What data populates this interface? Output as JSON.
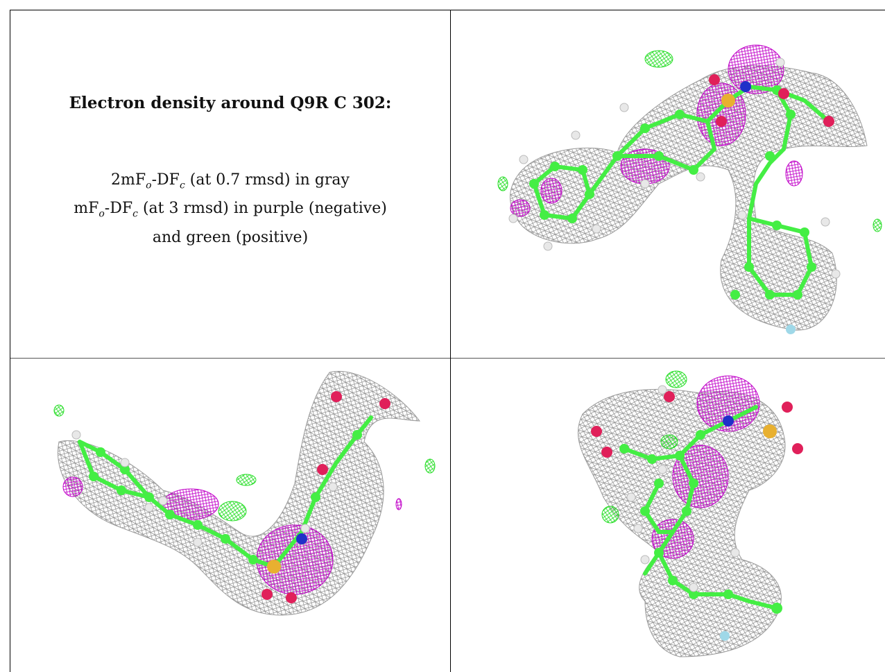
{
  "caption": {
    "title": "Electron density around Q9R C 302:",
    "line1": {
      "prefix": "2mF",
      "sub_o": "o",
      "mid": "-DF",
      "sub_c": "c",
      "suffix": " (at 0.7 rmsd) in gray"
    },
    "line2": {
      "prefix": "mF",
      "sub_o": "o",
      "mid": "-DF",
      "sub_c": "c",
      "suffix": " (at 3 rmsd) in purple (negative)"
    },
    "line3": "and green (positive)"
  },
  "legend_colors": {
    "map_2fofc": "#9a9a9a",
    "map_negative": "#c000c8",
    "map_positive": "#22dd22",
    "carbon": "#44ee44",
    "hydrogen": "#e8e8e8",
    "oxygen": "#e0205a",
    "nitrogen": "#2030c8",
    "sulfur": "#e8b030",
    "fluorine": "#9fd8e8"
  },
  "panels": [
    "view-top-right",
    "view-bottom-left",
    "view-bottom-right"
  ]
}
